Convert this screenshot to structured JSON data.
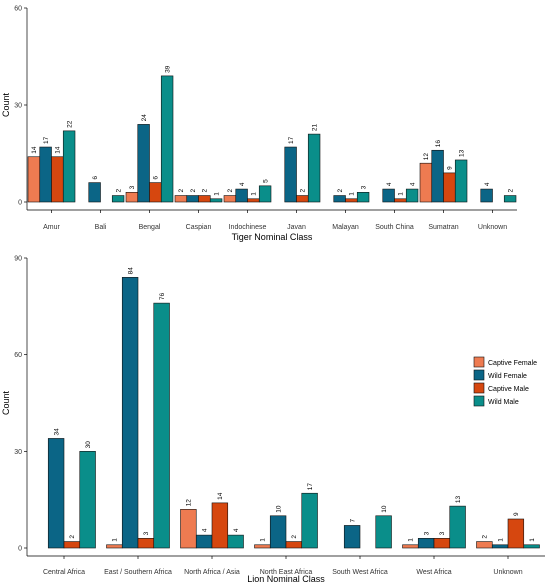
{
  "colors": {
    "Captive Female": "#EE7B51",
    "Wild Female": "#0B6586",
    "Captive Male": "#D6470F",
    "Wild Male": "#0A8E8A"
  },
  "legend": {
    "entries": [
      "Captive Female",
      "Wild Female",
      "Captive Male",
      "Wild Male"
    ]
  },
  "chart_data": [
    {
      "type": "bar",
      "xlabel": "Tiger Nominal Class",
      "ylabel": "Count",
      "ylim": [
        0,
        60
      ],
      "yticks": [
        0,
        30,
        60
      ],
      "grid": false,
      "legend_placement": "none",
      "categories": [
        "Amur",
        "Bali",
        "Bengal",
        "Caspian",
        "Indochinese",
        "Javan",
        "Malayan",
        "South China",
        "Sumatran",
        "Unknown"
      ],
      "series": [
        {
          "name": "Captive Female",
          "values": [
            14,
            null,
            3,
            2,
            2,
            null,
            null,
            null,
            12,
            null
          ]
        },
        {
          "name": "Wild Female",
          "values": [
            17,
            6,
            24,
            2,
            4,
            17,
            2,
            4,
            16,
            4
          ]
        },
        {
          "name": "Captive Male",
          "values": [
            14,
            null,
            6,
            2,
            1,
            2,
            1,
            1,
            9,
            null
          ]
        },
        {
          "name": "Wild Male",
          "values": [
            22,
            2,
            39,
            1,
            5,
            21,
            3,
            4,
            13,
            2
          ]
        }
      ]
    },
    {
      "type": "bar",
      "xlabel": "Lion Nominal Class",
      "ylabel": "Count",
      "ylim": [
        0,
        90
      ],
      "yticks": [
        0,
        30,
        60,
        90
      ],
      "grid": false,
      "legend_placement": "right",
      "categories": [
        "Central Africa",
        "East / Southern Africa",
        "North Africa / Asia",
        "North East Africa",
        "South West Africa",
        "West Africa",
        "Unknown"
      ],
      "series": [
        {
          "name": "Captive Female",
          "values": [
            null,
            1,
            12,
            1,
            null,
            1,
            2
          ]
        },
        {
          "name": "Wild Female",
          "values": [
            34,
            84,
            4,
            10,
            7,
            3,
            1
          ]
        },
        {
          "name": "Captive Male",
          "values": [
            2,
            3,
            14,
            2,
            null,
            3,
            9
          ]
        },
        {
          "name": "Wild Male",
          "values": [
            30,
            76,
            4,
            17,
            10,
            13,
            1
          ]
        }
      ]
    }
  ]
}
